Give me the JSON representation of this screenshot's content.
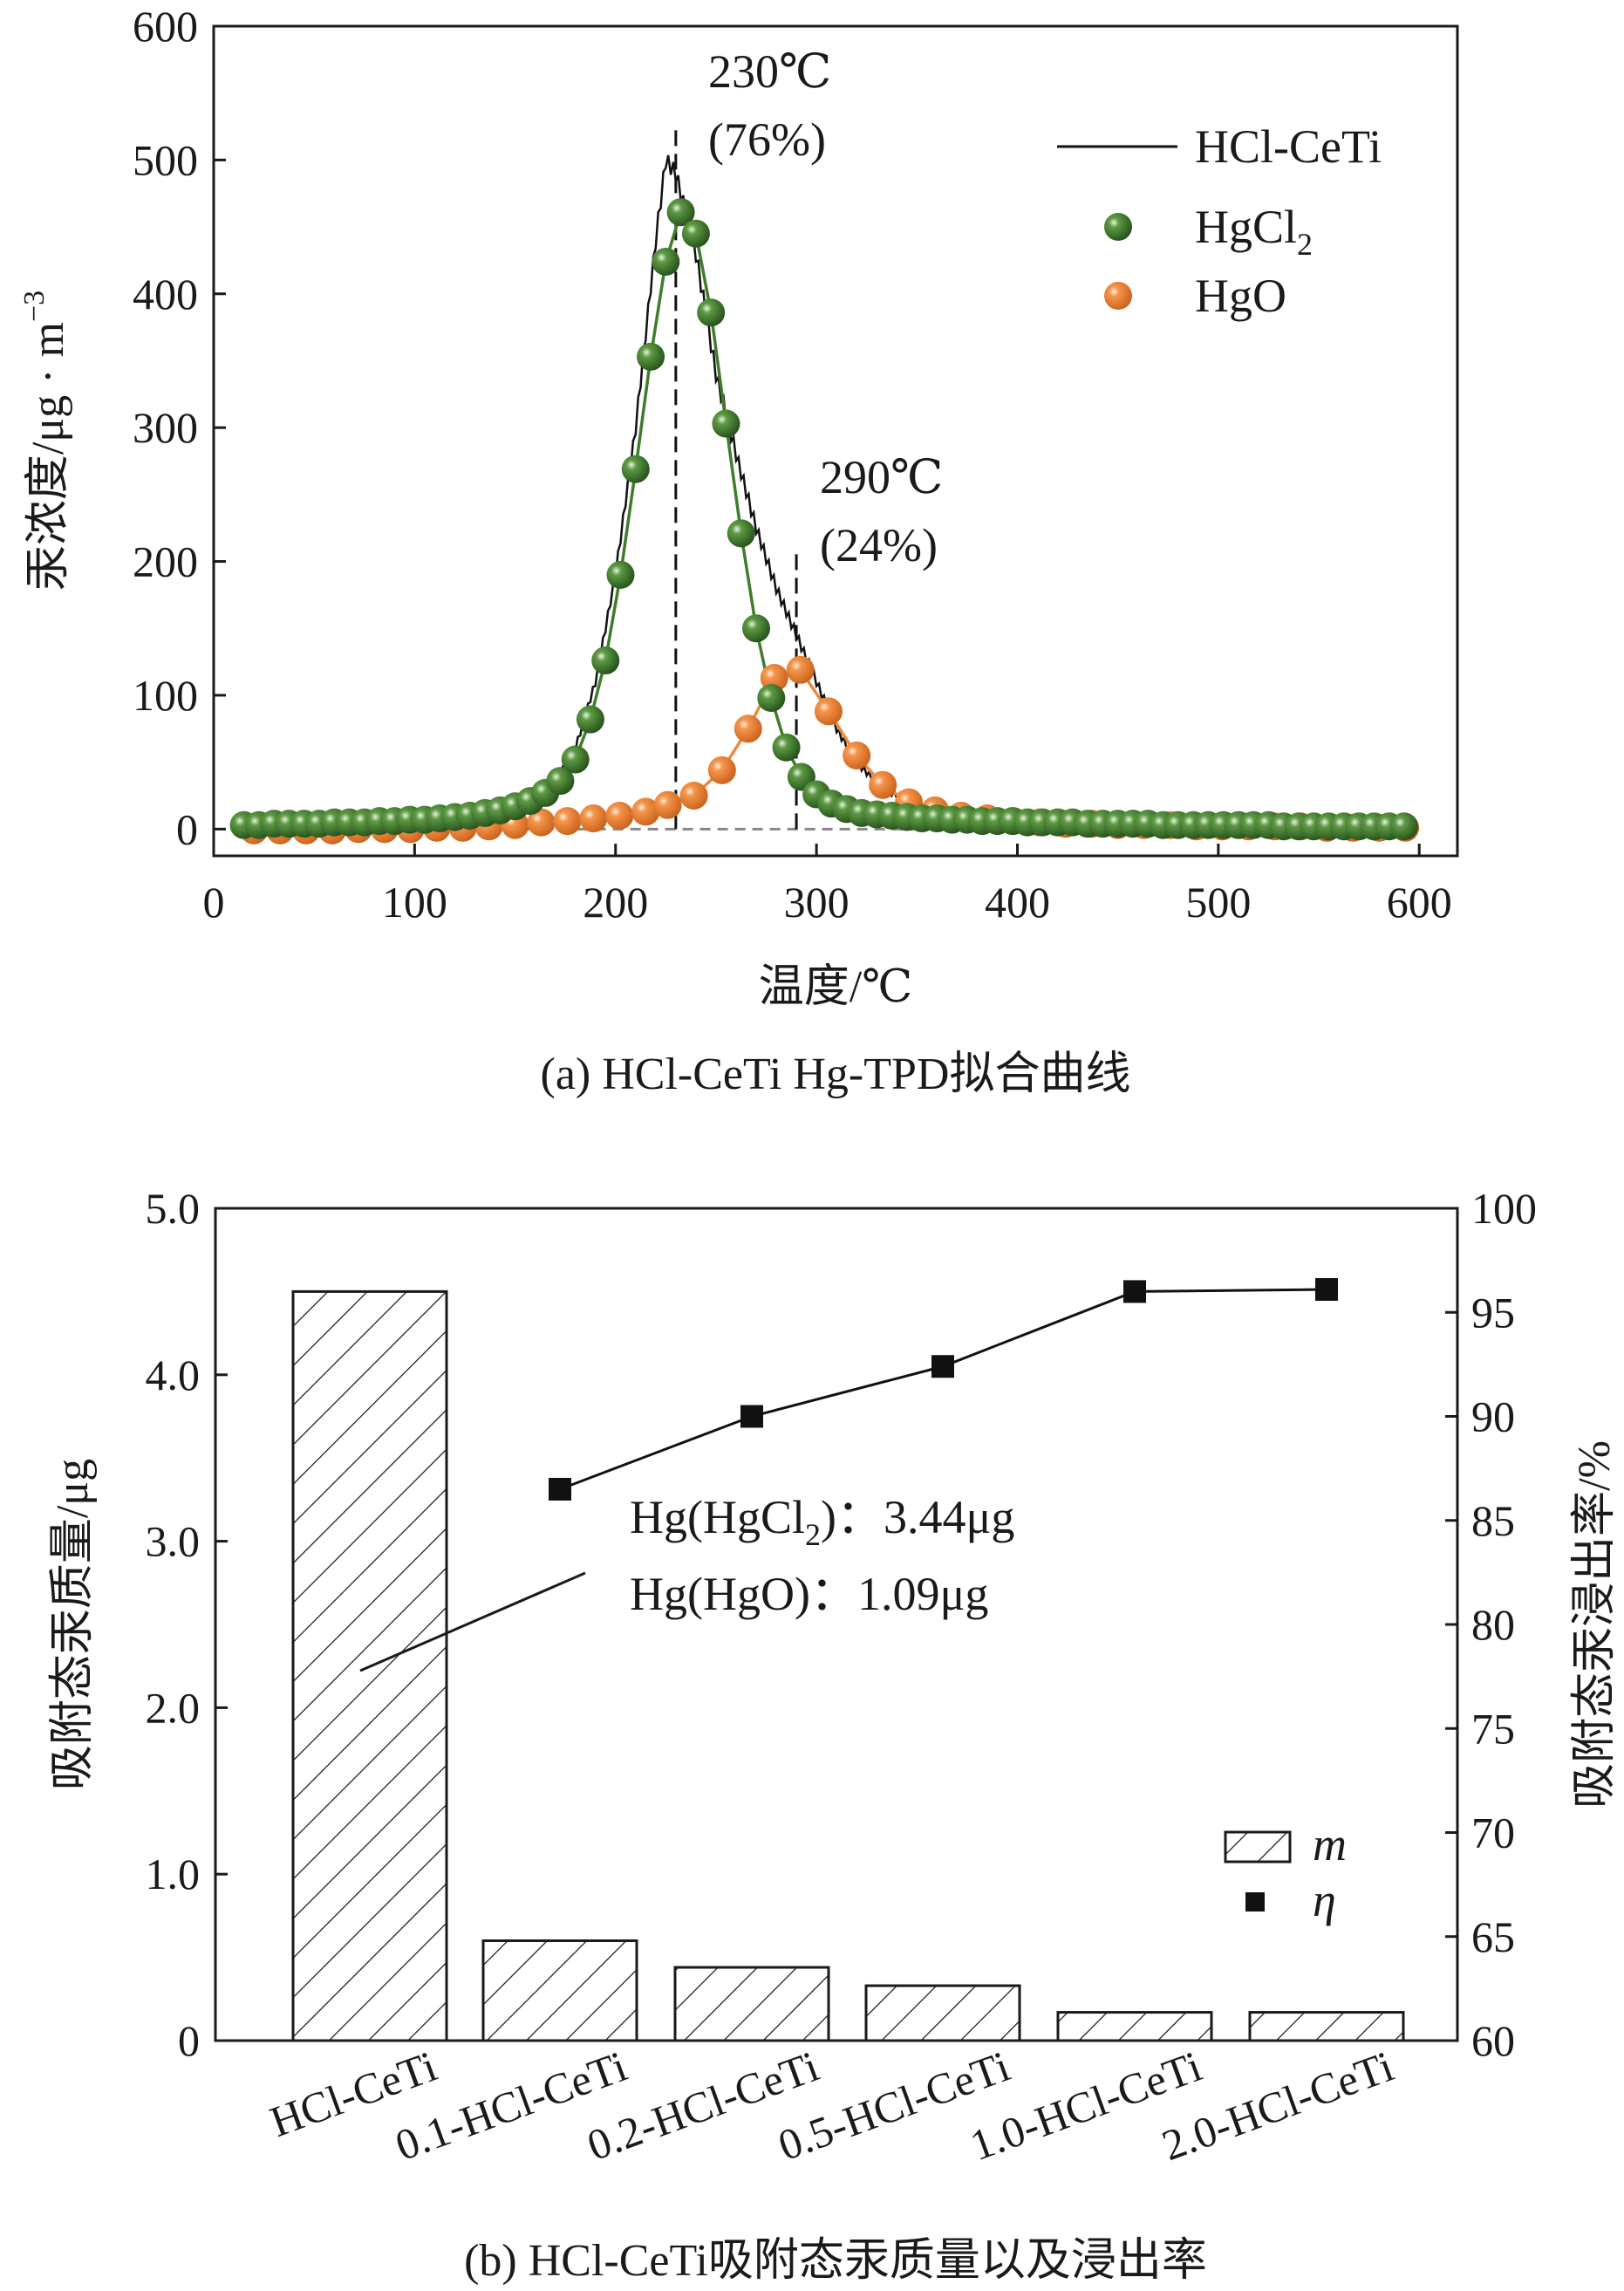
{
  "colors": {
    "hgcl2": "#3f7d2c",
    "hgcl2_dark": "#24501a",
    "hgo": "#f0883a",
    "hgo_dark": "#c9611c",
    "line": "#111111"
  },
  "chart_data": [
    {
      "type": "line",
      "title": "(a) HCl-CeTi Hg-TPD拟合曲线",
      "xlabel": "温度/℃",
      "ylabel_main": "汞浓度/μg · m",
      "ylabel_sup": "−3",
      "xlim": [
        0,
        619
      ],
      "ylim": [
        -20,
        600
      ],
      "xticks": [
        "0",
        "100",
        "200",
        "300",
        "400",
        "500",
        "600"
      ],
      "yticks": [
        "0",
        "100",
        "200",
        "300",
        "400",
        "500",
        "600"
      ],
      "legend_position": "top-right",
      "legend": {
        "line": "HCl-CeTi",
        "hgcl2_main": "HgCl",
        "hgcl2_sub": "2",
        "hgo": "HgO"
      },
      "annotations": [
        {
          "temp": "230℃",
          "share": "(76%)",
          "x": 230,
          "ymax": 525
        },
        {
          "temp": "290℃",
          "share": "(24%)",
          "x": 290,
          "ymax": 210
        }
      ],
      "series": [
        {
          "name": "HCl-CeTi",
          "style": "line",
          "x": [
            15,
            30,
            45,
            60,
            75,
            90,
            105,
            120,
            135,
            150,
            160,
            170,
            180,
            190,
            200,
            210,
            220,
            225,
            230,
            240,
            250,
            260,
            270,
            280,
            290,
            300,
            310,
            320,
            330,
            340,
            350,
            360,
            380,
            400,
            450,
            500,
            550,
            595
          ],
          "y": [
            2,
            3,
            3,
            4,
            4,
            5,
            6,
            7,
            10,
            15,
            22,
            35,
            60,
            110,
            190,
            300,
            440,
            500,
            490,
            430,
            340,
            280,
            225,
            180,
            145,
            110,
            75,
            50,
            35,
            25,
            18,
            14,
            10,
            8,
            5,
            4,
            3,
            2
          ]
        },
        {
          "name": "HgCl2",
          "style": "scatter-line",
          "x": [
            15,
            22.5,
            30,
            37.5,
            45,
            52.5,
            60,
            67.5,
            75,
            82.5,
            90,
            97.5,
            105,
            112.5,
            120,
            127.5,
            135,
            142.5,
            150,
            157.5,
            165,
            172.5,
            180,
            187.5,
            195,
            202.5,
            210,
            217.5,
            225,
            232.5,
            240,
            247.5,
            255,
            262.5,
            270,
            277.5,
            285,
            292.5,
            300,
            307.5,
            315,
            322.5,
            330,
            337.5,
            345,
            352.5,
            360,
            367.5,
            375,
            382.5,
            390,
            397.5,
            405,
            412.5,
            420,
            427.5,
            435,
            442.5,
            450,
            457.5,
            465,
            472.5,
            480,
            487.5,
            495,
            502.5,
            510,
            517.5,
            525,
            532.5,
            540,
            547.5,
            555,
            562.5,
            570,
            577.5,
            585,
            592.5
          ],
          "y": [
            3,
            3,
            4,
            4,
            4,
            4,
            5,
            5,
            5,
            6,
            6,
            7,
            7,
            8,
            9,
            10,
            12,
            14,
            17,
            21,
            27,
            36,
            52,
            82,
            126,
            190,
            269,
            353,
            424,
            461,
            445,
            386,
            303,
            221,
            150,
            98,
            61,
            39,
            26,
            19,
            15,
            12,
            11,
            10,
            9,
            8,
            8,
            7,
            7,
            6,
            6,
            6,
            5,
            5,
            5,
            5,
            4,
            4,
            4,
            4,
            4,
            3,
            3,
            3,
            3,
            3,
            3,
            3,
            3,
            2,
            2,
            2,
            2,
            2,
            2,
            2,
            2,
            2
          ]
        },
        {
          "name": "HgO",
          "style": "scatter-line",
          "x": [
            20,
            33,
            46,
            59,
            72,
            85,
            98,
            111,
            124,
            137,
            150,
            163,
            176,
            189,
            202,
            215,
            226,
            239,
            253,
            266,
            279,
            292,
            306,
            320,
            333,
            346,
            359,
            372,
            385,
            398,
            411,
            424,
            437,
            450,
            463,
            476,
            489,
            502,
            515,
            528,
            541,
            554,
            567,
            580,
            593
          ],
          "y": [
            -1,
            -1,
            -1,
            -1,
            0,
            0,
            0,
            1,
            1,
            2,
            3,
            5,
            6,
            8,
            10,
            13,
            18,
            25,
            44,
            75,
            113,
            119,
            88,
            55,
            33,
            20,
            14,
            10,
            8,
            6,
            5,
            4,
            4,
            3,
            3,
            3,
            2,
            2,
            2,
            2,
            2,
            1,
            1,
            1,
            1
          ]
        }
      ]
    },
    {
      "type": "bar",
      "title": "(b) HCl-CeTi吸附态汞质量以及浸出率",
      "ylabel_left": "吸附态汞质量/μg",
      "ylabel_right": "吸附态汞浸出率/%",
      "ylim_left": [
        0,
        5.0
      ],
      "ylim_right": [
        60,
        100
      ],
      "yticks_left": [
        "0",
        "1.0",
        "2.0",
        "3.0",
        "4.0",
        "5.0"
      ],
      "yticks_right": [
        "60",
        "65",
        "70",
        "75",
        "80",
        "85",
        "90",
        "95",
        "100"
      ],
      "categories": [
        "HCl-CeTi",
        "0.1-HCl-CeTi",
        "0.2-HCl-CeTi",
        "0.5-HCl-CeTi",
        "1.0-HCl-CeTi",
        "2.0-HCl-CeTi"
      ],
      "legend_position": "bottom-right",
      "legend": {
        "bar": "m",
        "point": "η"
      },
      "series": [
        {
          "name": "m",
          "axis": "left",
          "style": "hatched-bar",
          "values": [
            4.5,
            0.6,
            0.44,
            0.33,
            0.17,
            0.17
          ]
        },
        {
          "name": "η",
          "axis": "right",
          "style": "line-square",
          "values": [
            null,
            86.5,
            90.0,
            92.4,
            96.0,
            96.1
          ]
        }
      ],
      "annotation": {
        "line1_pre": "Hg(HgCl",
        "line1_sub": "2",
        "line1_post": ")：3.44μg",
        "line2": "Hg(HgO)：1.09μg"
      }
    }
  ]
}
